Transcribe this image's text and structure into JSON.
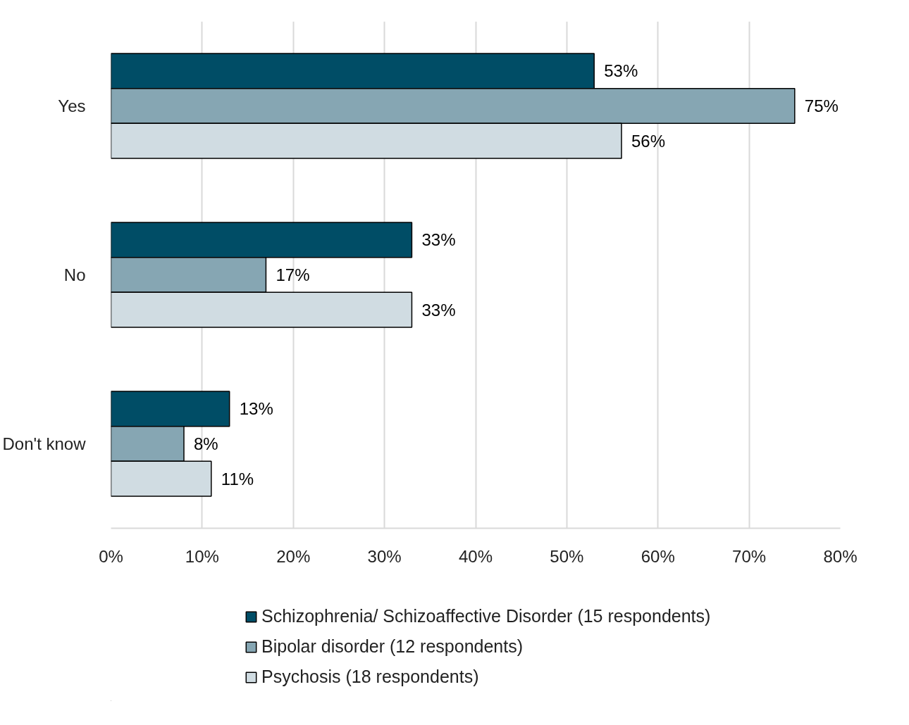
{
  "chart_data": {
    "type": "bar",
    "orientation": "horizontal",
    "categories": [
      "Yes",
      "No",
      "Don't know"
    ],
    "series": [
      {
        "name": "Schizophrenia/ Schizoaffective Disorder (15 respondents)",
        "color": "#004d66",
        "values": [
          53,
          33,
          13
        ],
        "value_labels": [
          "53%",
          "33%",
          "13%"
        ]
      },
      {
        "name": "Bipolar disorder (12 respondents)",
        "color": "#86a6b3",
        "values": [
          75,
          17,
          8
        ],
        "value_labels": [
          "75%",
          "17%",
          "8%"
        ]
      },
      {
        "name": "Psychosis (18 respondents)",
        "color": "#d0dce2",
        "values": [
          56,
          33,
          11
        ],
        "value_labels": [
          "56%",
          "33%",
          "11%"
        ]
      }
    ],
    "xlim": [
      0,
      80
    ],
    "xticks": [
      {
        "value": 0,
        "label": "0%"
      },
      {
        "value": 10,
        "label": "10%"
      },
      {
        "value": 20,
        "label": "20%"
      },
      {
        "value": 30,
        "label": "30%"
      },
      {
        "value": 40,
        "label": "40%"
      },
      {
        "value": 50,
        "label": "50%"
      },
      {
        "value": 60,
        "label": "60%"
      },
      {
        "value": 70,
        "label": "70%"
      },
      {
        "value": 80,
        "label": "80%"
      }
    ],
    "grid": "x",
    "legend": "bottom"
  }
}
